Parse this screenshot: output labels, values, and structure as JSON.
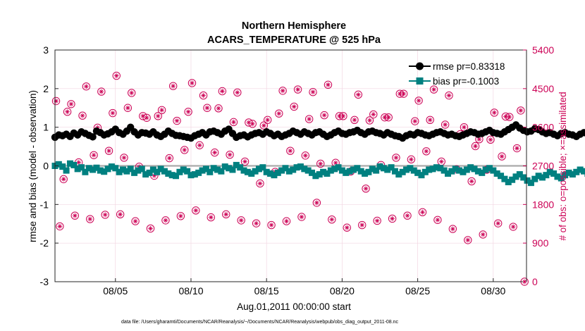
{
  "chart_data": {
    "type": "line",
    "title": [
      "Northern Hemisphere",
      "ACARS_TEMPERATURE @ 525 hPa"
    ],
    "xlabel": "Aug.01,2011 00:00:00 start",
    "ylabel_left": "rmse and bias (model - observation)",
    "ylabel_right": "# of obs: o=possible; ×=assimilated",
    "footnote": "data file: /Users/gharamti/Documents/NCAR/Reanalysis/~/Documents/NCAR/Reanalysis/webpub/obs_diag_output_2011-08.nc",
    "x_range_days": [
      1,
      32.2
    ],
    "x_ticks": [
      {
        "day": 5,
        "label": "08/05"
      },
      {
        "day": 10,
        "label": "08/10"
      },
      {
        "day": 15,
        "label": "08/15"
      },
      {
        "day": 20,
        "label": "08/20"
      },
      {
        "day": 25,
        "label": "08/25"
      },
      {
        "day": 30,
        "label": "08/30"
      }
    ],
    "ylim_left": [
      -3,
      3
    ],
    "yticks_left": [
      "-3",
      "-2",
      "-1",
      "0",
      "1",
      "2",
      "3"
    ],
    "ylim_right": [
      0,
      5400
    ],
    "yticks_right": [
      "0",
      "900",
      "1800",
      "2700",
      "3600",
      "4500",
      "5400"
    ],
    "legend": [
      {
        "label": "rmse pr=0.83318",
        "color": "#000000"
      },
      {
        "label": "bias pr=-0.1003",
        "color": "#008080"
      }
    ],
    "legend_position": "top-right",
    "colors": {
      "rmse": "#000000",
      "bias": "#008080",
      "obs": "#cc0055",
      "zero_line": "#aaaaaa"
    },
    "interval_hours": 6,
    "series": [
      {
        "name": "rmse pr=0.83318",
        "values": [
          0.74,
          0.8,
          0.78,
          0.82,
          0.76,
          0.85,
          0.8,
          0.88,
          0.84,
          0.79,
          0.75,
          0.9,
          0.86,
          0.8,
          0.83,
          0.88,
          0.95,
          0.86,
          0.82,
          0.9,
          1.0,
          0.88,
          0.8,
          0.86,
          0.85,
          0.82,
          0.88,
          0.8,
          0.76,
          0.82,
          0.9,
          0.84,
          0.79,
          0.78,
          0.76,
          0.74,
          0.72,
          0.78,
          0.82,
          0.86,
          0.8,
          0.88,
          0.9,
          0.86,
          0.82,
          0.9,
          0.95,
          0.84,
          0.74,
          0.78,
          0.8,
          0.75,
          0.8,
          0.84,
          0.86,
          0.82,
          0.88,
          0.84,
          0.78,
          0.82,
          0.76,
          0.8,
          0.84,
          0.9,
          0.86,
          0.82,
          0.88,
          0.84,
          0.8,
          0.86,
          0.88,
          0.82,
          0.76,
          0.8,
          0.86,
          0.9,
          0.84,
          0.82,
          0.86,
          0.88,
          0.92,
          0.86,
          0.82,
          0.88,
          0.9,
          0.86,
          0.84,
          0.8,
          0.86,
          0.82,
          0.78,
          0.76,
          0.72,
          0.78,
          0.82,
          0.8,
          0.86,
          0.84,
          0.8,
          0.78,
          0.82,
          0.86,
          0.88,
          0.84,
          0.8,
          0.82,
          0.78,
          0.76,
          0.8,
          0.84,
          0.88,
          0.86,
          0.82,
          0.84,
          0.88,
          0.92,
          0.86,
          0.84,
          0.82,
          0.88,
          0.94,
          1.0,
          1.06,
          0.98,
          0.92,
          0.88,
          0.9,
          0.96,
          0.94,
          0.88,
          0.84,
          0.86,
          0.82,
          0.78,
          0.84,
          0.86,
          0.82,
          0.8,
          0.76,
          0.82,
          0.86,
          0.84,
          0.8,
          0.78,
          0.82,
          0.84,
          0.86,
          0.84,
          0.88,
          0.86,
          0.84,
          0.82,
          0.86,
          0.88,
          0.9,
          0.94,
          1.0,
          0.96,
          0.92,
          0.88,
          0.84,
          0.86,
          0.82,
          0.78,
          0.84,
          0.82,
          0.8,
          0.86,
          0.88,
          0.84,
          0.8,
          0.86,
          0.84,
          0.8,
          0.82,
          0.78,
          0.76,
          0.82,
          0.86,
          0.84,
          0.82,
          0.86,
          0.9,
          0.88,
          0.84,
          0.82,
          0.78,
          0.76,
          0.8,
          0.84,
          0.86,
          0.82,
          0.78,
          0.8,
          0.84,
          0.86,
          0.82,
          0.76,
          0.82,
          0.86,
          0.84,
          0.8,
          0.86,
          0.82,
          0.84,
          0.8,
          0.86,
          0.82,
          0.76,
          0.84,
          0.86,
          0.82,
          0.8,
          0.78,
          0.82,
          0.86,
          0.88,
          0.82,
          0.8,
          0.84,
          0.86,
          0.8,
          0.78,
          0.82,
          0.84,
          0.8,
          0.78,
          0.82,
          0.84,
          0.8,
          0.82,
          0.84,
          0.76,
          0.82,
          0.84,
          0.8,
          0.82,
          0.8,
          0.82,
          0.84,
          0.8,
          0.82,
          0.84,
          0.84,
          0.8,
          0.82,
          0.82,
          0.8,
          0.82,
          0.8,
          0.82,
          0.8,
          0.82,
          0.82,
          0.8
        ]
      },
      {
        "name": "bias pr=-0.1003",
        "values": [
          0.0,
          0.04,
          -0.02,
          -0.12,
          0.06,
          0.02,
          -0.08,
          -0.04,
          -0.16,
          -0.06,
          -0.1,
          -0.05,
          -0.12,
          -0.15,
          -0.08,
          -0.02,
          -0.06,
          -0.16,
          -0.1,
          -0.14,
          -0.08,
          -0.18,
          -0.12,
          -0.08,
          -0.22,
          -0.18,
          -0.1,
          -0.16,
          -0.08,
          -0.14,
          -0.2,
          -0.24,
          -0.26,
          -0.16,
          -0.1,
          -0.14,
          -0.24,
          -0.22,
          -0.18,
          -0.12,
          -0.08,
          -0.16,
          -0.06,
          -0.1,
          -0.14,
          -0.02,
          -0.06,
          -0.1,
          0.02,
          -0.04,
          -0.12,
          -0.16,
          -0.2,
          -0.14,
          -0.08,
          -0.04,
          -0.16,
          -0.2,
          -0.24,
          -0.18,
          -0.12,
          -0.06,
          -0.14,
          -0.1,
          -0.04,
          -0.02,
          -0.08,
          -0.12,
          -0.18,
          -0.26,
          -0.22,
          -0.16,
          -0.2,
          -0.12,
          -0.08,
          -0.04,
          -0.12,
          -0.18,
          -0.14,
          -0.1,
          -0.06,
          -0.14,
          -0.2,
          -0.16,
          -0.08,
          -0.12,
          -0.02,
          -0.06,
          -0.1,
          -0.04,
          -0.14,
          -0.22,
          -0.16,
          -0.1,
          -0.06,
          -0.12,
          -0.18,
          -0.24,
          -0.16,
          -0.1,
          -0.08,
          -0.04,
          -0.06,
          -0.12,
          -0.2,
          -0.14,
          -0.08,
          -0.12,
          -0.16,
          -0.1,
          -0.04,
          -0.08,
          -0.14,
          -0.18,
          -0.1,
          -0.06,
          -0.12,
          -0.2,
          -0.26,
          -0.34,
          -0.42,
          -0.36,
          -0.28,
          -0.22,
          -0.3,
          -0.38,
          -0.44,
          -0.34,
          -0.26,
          -0.3,
          -0.24,
          -0.16,
          -0.2,
          -0.28,
          -0.32,
          -0.24,
          -0.18,
          -0.22,
          -0.16,
          -0.1,
          -0.14,
          -0.2,
          -0.26,
          -0.3,
          -0.22,
          -0.16,
          -0.12,
          -0.18,
          -0.24,
          -0.2,
          -0.14,
          -0.18,
          -0.22,
          -0.16,
          -0.12,
          -0.08,
          -0.14,
          -0.1,
          -0.04,
          -0.1,
          -0.16,
          -0.22,
          -0.18,
          -0.14,
          -0.1,
          -0.16,
          -0.2,
          -0.14,
          -0.08,
          -0.12,
          -0.18,
          -0.2,
          -0.16,
          -0.1,
          -0.06,
          -0.14,
          -0.18,
          -0.12,
          -0.08,
          -0.14,
          -0.2,
          -0.16,
          -0.1,
          -0.04,
          -0.08,
          -0.14,
          -0.18,
          -0.12,
          -0.06,
          -0.1,
          -0.04,
          -0.08,
          -0.12,
          -0.18,
          -0.22,
          -0.16,
          -0.1,
          -0.06,
          -0.12,
          -0.18,
          -0.14,
          -0.1,
          -0.06,
          -0.1,
          -0.16,
          -0.2,
          -0.26,
          -0.2,
          -0.14,
          -0.1,
          -0.16,
          -0.22,
          -0.28,
          -0.2,
          -0.16,
          -0.12,
          -0.18,
          -0.24,
          -0.2,
          -0.14,
          -0.1,
          -0.16,
          -0.22,
          -0.18,
          -0.12,
          -0.16,
          -0.22,
          -0.2,
          -0.14,
          -0.18,
          -0.24,
          -0.2,
          -0.16,
          -0.2,
          -0.26,
          -0.22,
          -0.18,
          -0.22,
          -0.28,
          -0.24,
          -0.18,
          -0.2,
          -0.26,
          -0.22,
          -0.18,
          -0.2,
          -0.24,
          -0.26,
          -0.24,
          -0.28,
          -0.26,
          -0.28,
          -0.26
        ]
      },
      {
        "name": "# of obs (possible/assimilated)",
        "points": [
          [
            1.07,
            4210
          ],
          [
            1.32,
            1290
          ],
          [
            1.57,
            2390
          ],
          [
            1.82,
            3960
          ],
          [
            2.07,
            4140
          ],
          [
            2.32,
            1540
          ],
          [
            2.57,
            2780
          ],
          [
            2.82,
            3870
          ],
          [
            3.07,
            4550
          ],
          [
            3.32,
            1460
          ],
          [
            3.57,
            2950
          ],
          [
            3.82,
            3590
          ],
          [
            4.07,
            4430
          ],
          [
            4.32,
            1560
          ],
          [
            4.57,
            3050
          ],
          [
            4.82,
            3930
          ],
          [
            5.07,
            4800
          ],
          [
            5.32,
            1570
          ],
          [
            5.57,
            2890
          ],
          [
            5.82,
            4050
          ],
          [
            6.07,
            4400
          ],
          [
            6.32,
            1410
          ],
          [
            6.57,
            2680
          ],
          [
            6.82,
            3860
          ],
          [
            7.07,
            3820
          ],
          [
            7.32,
            1240
          ],
          [
            7.57,
            2470
          ],
          [
            7.82,
            3860
          ],
          [
            8.07,
            4000
          ],
          [
            8.32,
            1430
          ],
          [
            8.57,
            2880
          ],
          [
            8.82,
            4560
          ],
          [
            9.07,
            3750
          ],
          [
            9.32,
            1530
          ],
          [
            9.57,
            3070
          ],
          [
            9.82,
            3960
          ],
          [
            10.07,
            4630
          ],
          [
            10.32,
            1660
          ],
          [
            10.57,
            3180
          ],
          [
            10.82,
            4340
          ],
          [
            11.07,
            4050
          ],
          [
            11.32,
            1500
          ],
          [
            11.57,
            3010
          ],
          [
            11.82,
            4040
          ],
          [
            12.07,
            4440
          ],
          [
            12.32,
            1570
          ],
          [
            12.57,
            2960
          ],
          [
            12.82,
            3720
          ],
          [
            13.07,
            4410
          ],
          [
            13.32,
            1430
          ],
          [
            13.57,
            2800
          ],
          [
            13.82,
            3710
          ],
          [
            14.07,
            3680
          ],
          [
            14.32,
            1360
          ],
          [
            14.57,
            2290
          ],
          [
            14.82,
            3640
          ],
          [
            15.07,
            3770
          ],
          [
            15.32,
            1320
          ],
          [
            15.57,
            2560
          ],
          [
            15.82,
            3920
          ],
          [
            16.07,
            4450
          ],
          [
            16.32,
            1410
          ],
          [
            16.57,
            3050
          ],
          [
            16.82,
            4080
          ],
          [
            17.07,
            4480
          ],
          [
            17.32,
            1510
          ],
          [
            17.57,
            2940
          ],
          [
            17.82,
            3790
          ],
          [
            18.07,
            4420
          ],
          [
            18.32,
            1840
          ],
          [
            18.57,
            2750
          ],
          [
            18.82,
            3880
          ],
          [
            19.07,
            4590
          ],
          [
            19.32,
            1450
          ],
          [
            19.57,
            2770
          ],
          [
            19.82,
            3860
          ],
          [
            20.07,
            3860
          ],
          [
            20.32,
            1260
          ],
          [
            20.57,
            2570
          ],
          [
            20.82,
            3770
          ],
          [
            21.07,
            4360
          ],
          [
            21.32,
            1320
          ],
          [
            21.57,
            2170
          ],
          [
            21.82,
            3760
          ],
          [
            22.07,
            3900
          ],
          [
            22.32,
            1420
          ],
          [
            22.57,
            2720
          ],
          [
            22.82,
            3830
          ],
          [
            23.07,
            3830
          ],
          [
            23.32,
            1470
          ],
          [
            23.57,
            2890
          ],
          [
            23.82,
            4380
          ],
          [
            24.07,
            4380
          ],
          [
            24.32,
            1540
          ],
          [
            24.57,
            2850
          ],
          [
            24.82,
            3740
          ],
          [
            25.07,
            4220
          ],
          [
            25.32,
            1620
          ],
          [
            25.57,
            3040
          ],
          [
            25.82,
            3770
          ],
          [
            26.07,
            4480
          ],
          [
            26.32,
            1440
          ],
          [
            26.57,
            2800
          ],
          [
            26.82,
            3660
          ],
          [
            27.07,
            4340
          ],
          [
            27.32,
            1230
          ],
          [
            27.57,
            2620
          ],
          [
            27.82,
            3440
          ],
          [
            28.07,
            3600
          ],
          [
            28.32,
            970
          ],
          [
            28.57,
            2340
          ],
          [
            28.82,
            3160
          ],
          [
            29.07,
            3320
          ],
          [
            29.32,
            1100
          ],
          [
            29.57,
            2610
          ],
          [
            29.82,
            3310
          ],
          [
            30.07,
            3940
          ],
          [
            30.32,
            1360
          ],
          [
            30.57,
            2920
          ],
          [
            30.82,
            3850
          ],
          [
            31.07,
            3840
          ],
          [
            31.32,
            1280
          ],
          [
            31.57,
            3110
          ],
          [
            31.82,
            3990
          ],
          [
            32.07,
            0
          ]
        ]
      }
    ]
  }
}
